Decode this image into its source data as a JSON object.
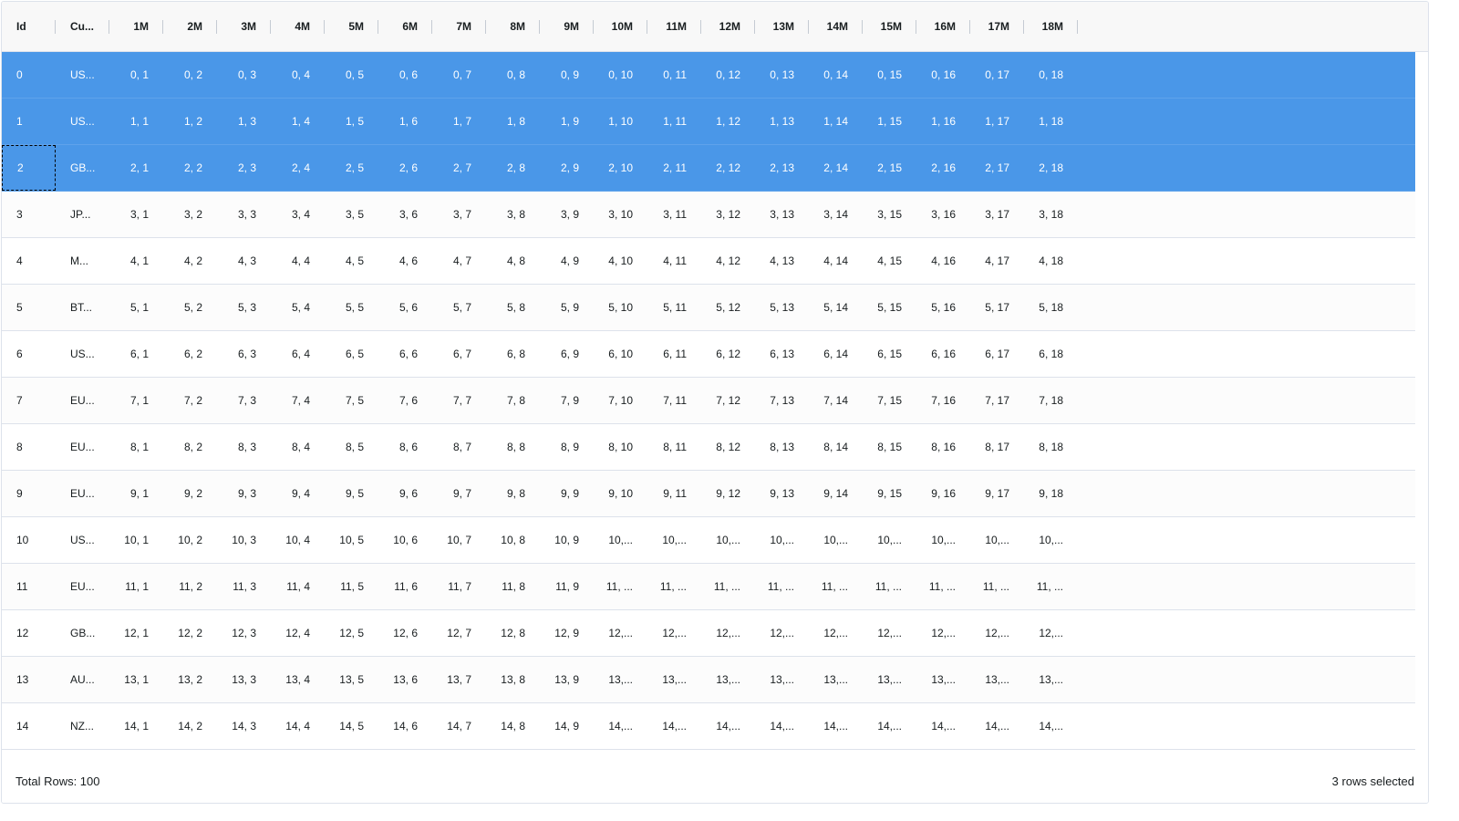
{
  "grid": {
    "headers": [
      "Id",
      "Cu...",
      "1M",
      "2M",
      "3M",
      "4M",
      "5M",
      "6M",
      "7M",
      "8M",
      "9M",
      "10M",
      "11M",
      "12M",
      "13M",
      "14M",
      "15M",
      "16M",
      "17M",
      "18M"
    ],
    "selected_rows": [
      0,
      1,
      2
    ],
    "focused_cell": {
      "row": 2,
      "col": 0
    },
    "rows": [
      [
        "0",
        "US...",
        "0, 1",
        "0, 2",
        "0, 3",
        "0, 4",
        "0, 5",
        "0, 6",
        "0, 7",
        "0, 8",
        "0, 9",
        "0, 10",
        "0, 11",
        "0, 12",
        "0, 13",
        "0, 14",
        "0, 15",
        "0, 16",
        "0, 17",
        "0, 18"
      ],
      [
        "1",
        "US...",
        "1, 1",
        "1, 2",
        "1, 3",
        "1, 4",
        "1, 5",
        "1, 6",
        "1, 7",
        "1, 8",
        "1, 9",
        "1, 10",
        "1, 11",
        "1, 12",
        "1, 13",
        "1, 14",
        "1, 15",
        "1, 16",
        "1, 17",
        "1, 18"
      ],
      [
        "2",
        "GB...",
        "2, 1",
        "2, 2",
        "2, 3",
        "2, 4",
        "2, 5",
        "2, 6",
        "2, 7",
        "2, 8",
        "2, 9",
        "2, 10",
        "2, 11",
        "2, 12",
        "2, 13",
        "2, 14",
        "2, 15",
        "2, 16",
        "2, 17",
        "2, 18"
      ],
      [
        "3",
        "JP...",
        "3, 1",
        "3, 2",
        "3, 3",
        "3, 4",
        "3, 5",
        "3, 6",
        "3, 7",
        "3, 8",
        "3, 9",
        "3, 10",
        "3, 11",
        "3, 12",
        "3, 13",
        "3, 14",
        "3, 15",
        "3, 16",
        "3, 17",
        "3, 18"
      ],
      [
        "4",
        "M...",
        "4, 1",
        "4, 2",
        "4, 3",
        "4, 4",
        "4, 5",
        "4, 6",
        "4, 7",
        "4, 8",
        "4, 9",
        "4, 10",
        "4, 11",
        "4, 12",
        "4, 13",
        "4, 14",
        "4, 15",
        "4, 16",
        "4, 17",
        "4, 18"
      ],
      [
        "5",
        "BT...",
        "5, 1",
        "5, 2",
        "5, 3",
        "5, 4",
        "5, 5",
        "5, 6",
        "5, 7",
        "5, 8",
        "5, 9",
        "5, 10",
        "5, 11",
        "5, 12",
        "5, 13",
        "5, 14",
        "5, 15",
        "5, 16",
        "5, 17",
        "5, 18"
      ],
      [
        "6",
        "US...",
        "6, 1",
        "6, 2",
        "6, 3",
        "6, 4",
        "6, 5",
        "6, 6",
        "6, 7",
        "6, 8",
        "6, 9",
        "6, 10",
        "6, 11",
        "6, 12",
        "6, 13",
        "6, 14",
        "6, 15",
        "6, 16",
        "6, 17",
        "6, 18"
      ],
      [
        "7",
        "EU...",
        "7, 1",
        "7, 2",
        "7, 3",
        "7, 4",
        "7, 5",
        "7, 6",
        "7, 7",
        "7, 8",
        "7, 9",
        "7, 10",
        "7, 11",
        "7, 12",
        "7, 13",
        "7, 14",
        "7, 15",
        "7, 16",
        "7, 17",
        "7, 18"
      ],
      [
        "8",
        "EU...",
        "8, 1",
        "8, 2",
        "8, 3",
        "8, 4",
        "8, 5",
        "8, 6",
        "8, 7",
        "8, 8",
        "8, 9",
        "8, 10",
        "8, 11",
        "8, 12",
        "8, 13",
        "8, 14",
        "8, 15",
        "8, 16",
        "8, 17",
        "8, 18"
      ],
      [
        "9",
        "EU...",
        "9, 1",
        "9, 2",
        "9, 3",
        "9, 4",
        "9, 5",
        "9, 6",
        "9, 7",
        "9, 8",
        "9, 9",
        "9, 10",
        "9, 11",
        "9, 12",
        "9, 13",
        "9, 14",
        "9, 15",
        "9, 16",
        "9, 17",
        "9, 18"
      ],
      [
        "10",
        "US...",
        "10, 1",
        "10, 2",
        "10, 3",
        "10, 4",
        "10, 5",
        "10, 6",
        "10, 7",
        "10, 8",
        "10, 9",
        "10,...",
        "10,...",
        "10,...",
        "10,...",
        "10,...",
        "10,...",
        "10,...",
        "10,...",
        "10,..."
      ],
      [
        "11",
        "EU...",
        "11, 1",
        "11, 2",
        "11, 3",
        "11, 4",
        "11, 5",
        "11, 6",
        "11, 7",
        "11, 8",
        "11, 9",
        "11, ...",
        "11, ...",
        "11, ...",
        "11, ...",
        "11, ...",
        "11, ...",
        "11, ...",
        "11, ...",
        "11, ..."
      ],
      [
        "12",
        "GB...",
        "12, 1",
        "12, 2",
        "12, 3",
        "12, 4",
        "12, 5",
        "12, 6",
        "12, 7",
        "12, 8",
        "12, 9",
        "12,...",
        "12,...",
        "12,...",
        "12,...",
        "12,...",
        "12,...",
        "12,...",
        "12,...",
        "12,..."
      ],
      [
        "13",
        "AU...",
        "13, 1",
        "13, 2",
        "13, 3",
        "13, 4",
        "13, 5",
        "13, 6",
        "13, 7",
        "13, 8",
        "13, 9",
        "13,...",
        "13,...",
        "13,...",
        "13,...",
        "13,...",
        "13,...",
        "13,...",
        "13,...",
        "13,..."
      ],
      [
        "14",
        "NZ...",
        "14, 1",
        "14, 2",
        "14, 3",
        "14, 4",
        "14, 5",
        "14, 6",
        "14, 7",
        "14, 8",
        "14, 9",
        "14,...",
        "14,...",
        "14,...",
        "14,...",
        "14,...",
        "14,...",
        "14,...",
        "14,...",
        "14,..."
      ]
    ]
  },
  "footer": {
    "total_rows": "Total Rows: 100",
    "selection_status": "3 rows selected"
  },
  "colors": {
    "selected_row": "#4a97e8",
    "border": "#dde2eb",
    "header_bg": "#f8f8f8"
  }
}
